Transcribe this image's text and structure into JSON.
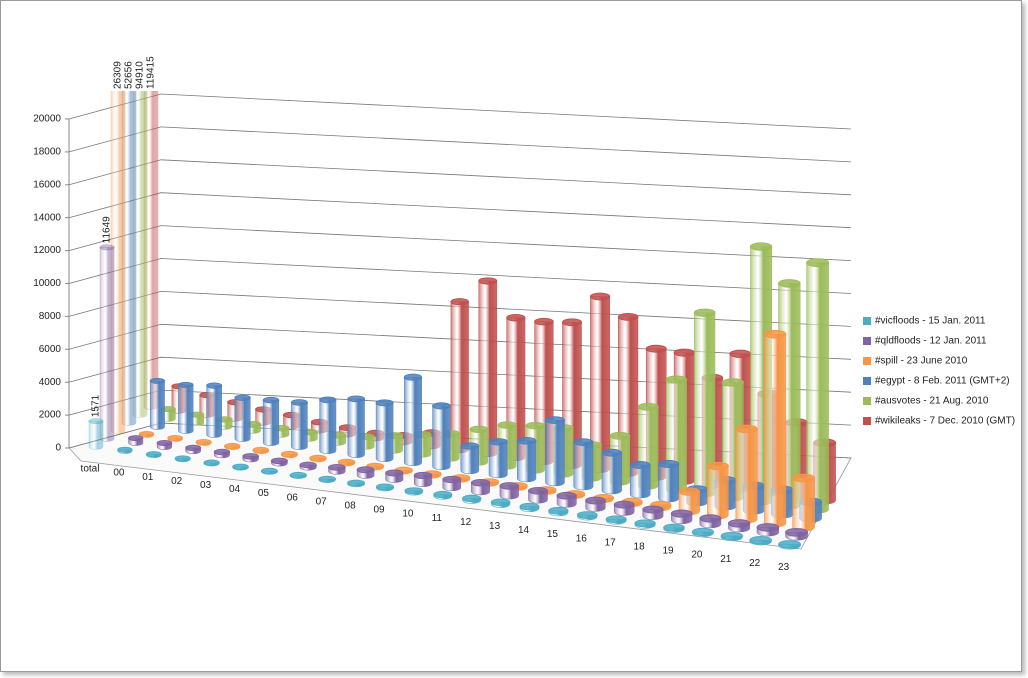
{
  "chart_data": {
    "type": "cylinder3d",
    "categories": [
      "total",
      "00",
      "01",
      "02",
      "03",
      "04",
      "05",
      "06",
      "07",
      "08",
      "09",
      "10",
      "11",
      "12",
      "13",
      "14",
      "15",
      "16",
      "17",
      "18",
      "19",
      "20",
      "21",
      "22",
      "23"
    ],
    "ylim": [
      0,
      20000
    ],
    "yticks": [
      0,
      2000,
      4000,
      6000,
      8000,
      10000,
      12000,
      14000,
      16000,
      18000,
      20000
    ],
    "grid": true,
    "legend": "right",
    "series": [
      {
        "name": "#vicfloods - 15 Jan. 2011",
        "color": "#4bacc6",
        "values": [
          1571,
          80,
          60,
          50,
          40,
          40,
          30,
          30,
          40,
          50,
          60,
          80,
          100,
          120,
          130,
          120,
          110,
          100,
          90,
          90,
          80,
          70,
          70,
          60,
          60
        ]
      },
      {
        "name": "#qldfloods - 12 Jan. 2011",
        "color": "#8064a2",
        "values": [
          11649,
          300,
          250,
          200,
          200,
          180,
          150,
          150,
          250,
          350,
          400,
          500,
          500,
          550,
          600,
          550,
          500,
          450,
          450,
          400,
          400,
          350,
          300,
          300,
          250
        ]
      },
      {
        "name": "#spill - 23 June 2010",
        "color": "#f79646",
        "values": [
          26309,
          60,
          60,
          60,
          60,
          60,
          60,
          60,
          60,
          60,
          60,
          80,
          80,
          80,
          80,
          80,
          80,
          80,
          100,
          150,
          1200,
          3000,
          5500,
          11500,
          3000
        ]
      },
      {
        "name": "#egypt - 8 Feb. 2011 (GMT+2)",
        "color": "#4f81bd",
        "values": [
          52656,
          2800,
          2800,
          3000,
          2500,
          2600,
          2700,
          3100,
          3400,
          3400,
          5200,
          3700,
          1500,
          2000,
          2300,
          3800,
          2700,
          2300,
          1800,
          2100,
          800,
          1600,
          1500,
          1500,
          1000
        ]
      },
      {
        "name": "#ausvotes - 21 Aug. 2010",
        "color": "#9bbb59",
        "values": [
          94910,
          600,
          500,
          450,
          400,
          400,
          400,
          450,
          600,
          900,
          1200,
          1500,
          2000,
          2500,
          2700,
          2800,
          2000,
          2800,
          4800,
          6700,
          11000,
          7000,
          15500,
          13500,
          15000
        ]
      },
      {
        "name": "#wikileaks - 7 Dec. 2010 (GMT)",
        "color": "#c0504d",
        "values": [
          119415,
          1500,
          1200,
          1000,
          800,
          700,
          500,
          400,
          300,
          400,
          800,
          9000,
          10500,
          8500,
          8500,
          8700,
          10500,
          9500,
          7800,
          7800,
          6500,
          8200,
          6000,
          4500,
          3500
        ]
      }
    ]
  }
}
